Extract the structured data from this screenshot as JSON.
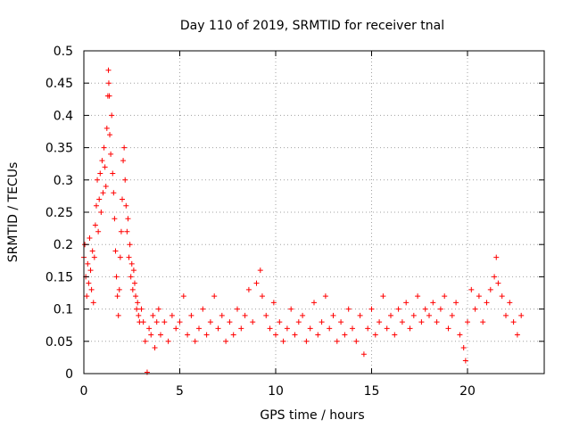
{
  "chart_data": {
    "type": "scatter",
    "title": "Day 110 of 2019, SRMTID for receiver tnal",
    "xlabel": "GPS time / hours",
    "ylabel": "SRMTID / TECUs",
    "xlim": [
      0,
      24
    ],
    "ylim": [
      0,
      0.5
    ],
    "xticks": [
      0,
      5,
      10,
      15,
      20
    ],
    "xtick_labels": [
      "0",
      "5",
      "10",
      "15",
      "20"
    ],
    "yticks": [
      0,
      0.05,
      0.1,
      0.15,
      0.2,
      0.25,
      0.3,
      0.35,
      0.4,
      0.45,
      0.5
    ],
    "ytick_labels": [
      "0",
      "0.05",
      "0.1",
      "0.15",
      "0.2",
      "0.25",
      "0.3",
      "0.35",
      "0.4",
      "0.45",
      "0.5"
    ],
    "grid": true,
    "marker": "+",
    "color": "#ff0000",
    "series": [
      {
        "name": "SRMTID",
        "points": [
          [
            0.0,
            0.18
          ],
          [
            0.05,
            0.2
          ],
          [
            0.1,
            0.15
          ],
          [
            0.15,
            0.12
          ],
          [
            0.2,
            0.17
          ],
          [
            0.25,
            0.14
          ],
          [
            0.3,
            0.21
          ],
          [
            0.35,
            0.16
          ],
          [
            0.4,
            0.13
          ],
          [
            0.45,
            0.19
          ],
          [
            0.5,
            0.11
          ],
          [
            0.55,
            0.18
          ],
          [
            0.6,
            0.23
          ],
          [
            0.65,
            0.26
          ],
          [
            0.7,
            0.3
          ],
          [
            0.75,
            0.22
          ],
          [
            0.8,
            0.27
          ],
          [
            0.85,
            0.31
          ],
          [
            0.9,
            0.25
          ],
          [
            0.95,
            0.33
          ],
          [
            1.0,
            0.28
          ],
          [
            1.05,
            0.35
          ],
          [
            1.1,
            0.32
          ],
          [
            1.15,
            0.29
          ],
          [
            1.2,
            0.38
          ],
          [
            1.25,
            0.43
          ],
          [
            1.28,
            0.47
          ],
          [
            1.3,
            0.45
          ],
          [
            1.33,
            0.43
          ],
          [
            1.35,
            0.37
          ],
          [
            1.4,
            0.34
          ],
          [
            1.45,
            0.4
          ],
          [
            1.5,
            0.31
          ],
          [
            1.55,
            0.28
          ],
          [
            1.6,
            0.24
          ],
          [
            1.65,
            0.19
          ],
          [
            1.7,
            0.15
          ],
          [
            1.75,
            0.12
          ],
          [
            1.8,
            0.09
          ],
          [
            1.85,
            0.13
          ],
          [
            1.9,
            0.18
          ],
          [
            1.95,
            0.22
          ],
          [
            2.0,
            0.27
          ],
          [
            2.05,
            0.33
          ],
          [
            2.1,
            0.35
          ],
          [
            2.15,
            0.3
          ],
          [
            2.2,
            0.26
          ],
          [
            2.25,
            0.22
          ],
          [
            2.3,
            0.24
          ],
          [
            2.35,
            0.18
          ],
          [
            2.4,
            0.2
          ],
          [
            2.45,
            0.15
          ],
          [
            2.5,
            0.17
          ],
          [
            2.55,
            0.13
          ],
          [
            2.6,
            0.16
          ],
          [
            2.65,
            0.14
          ],
          [
            2.7,
            0.12
          ],
          [
            2.75,
            0.1
          ],
          [
            2.8,
            0.11
          ],
          [
            2.85,
            0.09
          ],
          [
            2.9,
            0.08
          ],
          [
            3.0,
            0.1
          ],
          [
            3.1,
            0.08
          ],
          [
            3.2,
            0.05
          ],
          [
            3.3,
            0.002
          ],
          [
            3.4,
            0.07
          ],
          [
            3.5,
            0.06
          ],
          [
            3.6,
            0.09
          ],
          [
            3.7,
            0.04
          ],
          [
            3.8,
            0.08
          ],
          [
            3.9,
            0.1
          ],
          [
            4.0,
            0.06
          ],
          [
            4.2,
            0.08
          ],
          [
            4.4,
            0.05
          ],
          [
            4.6,
            0.09
          ],
          [
            4.8,
            0.07
          ],
          [
            5.0,
            0.08
          ],
          [
            5.2,
            0.12
          ],
          [
            5.4,
            0.06
          ],
          [
            5.6,
            0.09
          ],
          [
            5.8,
            0.05
          ],
          [
            6.0,
            0.07
          ],
          [
            6.2,
            0.1
          ],
          [
            6.4,
            0.06
          ],
          [
            6.6,
            0.08
          ],
          [
            6.8,
            0.12
          ],
          [
            7.0,
            0.07
          ],
          [
            7.2,
            0.09
          ],
          [
            7.4,
            0.05
          ],
          [
            7.6,
            0.08
          ],
          [
            7.8,
            0.06
          ],
          [
            8.0,
            0.1
          ],
          [
            8.2,
            0.07
          ],
          [
            8.4,
            0.09
          ],
          [
            8.6,
            0.13
          ],
          [
            8.8,
            0.08
          ],
          [
            9.0,
            0.14
          ],
          [
            9.2,
            0.16
          ],
          [
            9.3,
            0.12
          ],
          [
            9.5,
            0.09
          ],
          [
            9.7,
            0.07
          ],
          [
            9.9,
            0.11
          ],
          [
            10.0,
            0.06
          ],
          [
            10.2,
            0.08
          ],
          [
            10.4,
            0.05
          ],
          [
            10.6,
            0.07
          ],
          [
            10.8,
            0.1
          ],
          [
            11.0,
            0.06
          ],
          [
            11.2,
            0.08
          ],
          [
            11.4,
            0.09
          ],
          [
            11.6,
            0.05
          ],
          [
            11.8,
            0.07
          ],
          [
            12.0,
            0.11
          ],
          [
            12.2,
            0.06
          ],
          [
            12.4,
            0.08
          ],
          [
            12.6,
            0.12
          ],
          [
            12.8,
            0.07
          ],
          [
            13.0,
            0.09
          ],
          [
            13.2,
            0.05
          ],
          [
            13.4,
            0.08
          ],
          [
            13.6,
            0.06
          ],
          [
            13.8,
            0.1
          ],
          [
            14.0,
            0.07
          ],
          [
            14.2,
            0.05
          ],
          [
            14.4,
            0.09
          ],
          [
            14.6,
            0.03
          ],
          [
            14.8,
            0.07
          ],
          [
            15.0,
            0.1
          ],
          [
            15.2,
            0.06
          ],
          [
            15.4,
            0.08
          ],
          [
            15.6,
            0.12
          ],
          [
            15.8,
            0.07
          ],
          [
            16.0,
            0.09
          ],
          [
            16.2,
            0.06
          ],
          [
            16.4,
            0.1
          ],
          [
            16.6,
            0.08
          ],
          [
            16.8,
            0.11
          ],
          [
            17.0,
            0.07
          ],
          [
            17.2,
            0.09
          ],
          [
            17.4,
            0.12
          ],
          [
            17.6,
            0.08
          ],
          [
            17.8,
            0.1
          ],
          [
            18.0,
            0.09
          ],
          [
            18.2,
            0.11
          ],
          [
            18.4,
            0.08
          ],
          [
            18.6,
            0.1
          ],
          [
            18.8,
            0.12
          ],
          [
            19.0,
            0.07
          ],
          [
            19.2,
            0.09
          ],
          [
            19.4,
            0.11
          ],
          [
            19.6,
            0.06
          ],
          [
            19.8,
            0.04
          ],
          [
            19.9,
            0.02
          ],
          [
            20.0,
            0.08
          ],
          [
            20.2,
            0.13
          ],
          [
            20.4,
            0.1
          ],
          [
            20.6,
            0.12
          ],
          [
            20.8,
            0.08
          ],
          [
            21.0,
            0.11
          ],
          [
            21.2,
            0.13
          ],
          [
            21.4,
            0.15
          ],
          [
            21.5,
            0.18
          ],
          [
            21.6,
            0.14
          ],
          [
            21.8,
            0.12
          ],
          [
            22.0,
            0.09
          ],
          [
            22.2,
            0.11
          ],
          [
            22.4,
            0.08
          ],
          [
            22.6,
            0.06
          ],
          [
            22.8,
            0.09
          ]
        ]
      }
    ]
  }
}
